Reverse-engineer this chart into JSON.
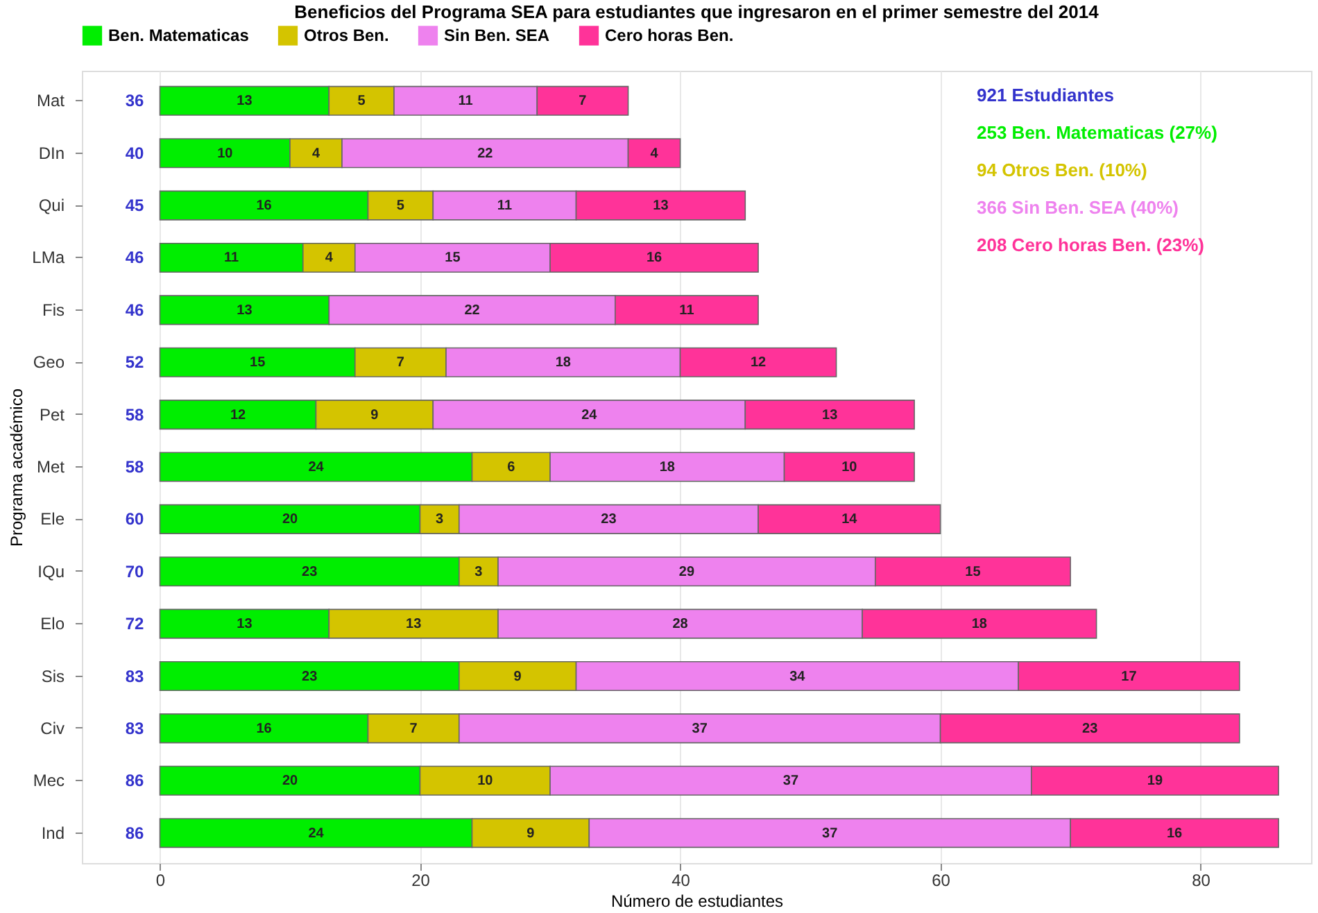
{
  "chart_data": {
    "type": "bar",
    "orientation": "horizontal",
    "stacked": true,
    "title": "Beneficios del Programa SEA para estudiantes que ingresaron en el primer semestre del 2014",
    "xlabel": "Número de estudiantes",
    "ylabel": "Programa académico",
    "categories": [
      "Mat",
      "DIn",
      "Qui",
      "LMa",
      "Fis",
      "Geo",
      "Pet",
      "Met",
      "Ele",
      "IQu",
      "Elo",
      "Sis",
      "Civ",
      "Mec",
      "Ind"
    ],
    "series": [
      {
        "name": "Ben. Matematicas",
        "color": "#00ee00",
        "values": [
          13,
          10,
          16,
          11,
          13,
          15,
          12,
          24,
          20,
          23,
          13,
          23,
          16,
          20,
          24
        ]
      },
      {
        "name": "Otros Ben.",
        "color": "#d4c400",
        "values": [
          5,
          4,
          5,
          4,
          null,
          7,
          9,
          6,
          3,
          3,
          13,
          9,
          7,
          10,
          9
        ]
      },
      {
        "name": "Sin Ben. SEA",
        "color": "#ee82ee",
        "values": [
          11,
          22,
          11,
          15,
          22,
          18,
          24,
          18,
          23,
          29,
          28,
          34,
          37,
          37,
          37
        ]
      },
      {
        "name": "Cero horas Ben.",
        "color": "#ff3399",
        "values": [
          7,
          4,
          13,
          16,
          11,
          12,
          13,
          10,
          14,
          15,
          18,
          17,
          23,
          19,
          16
        ]
      }
    ],
    "totals": [
      "36",
      "40",
      "45",
      "46",
      "46",
      "52",
      "58",
      "58",
      "60",
      "70",
      "72",
      "83",
      "83",
      "86",
      "86"
    ],
    "data_labels": true,
    "xlim": [
      -6,
      88.5
    ],
    "xticks": [
      0,
      20,
      40,
      60,
      80
    ],
    "grid": "x",
    "legend": "top",
    "annotations": [
      "921 Estudiantes",
      "253 Ben. Matematicas (27%)",
      "94 Otros Ben. (10%)",
      "366 Sin Ben. SEA (40%)",
      "208 Cero horas Ben. (23%)"
    ]
  }
}
